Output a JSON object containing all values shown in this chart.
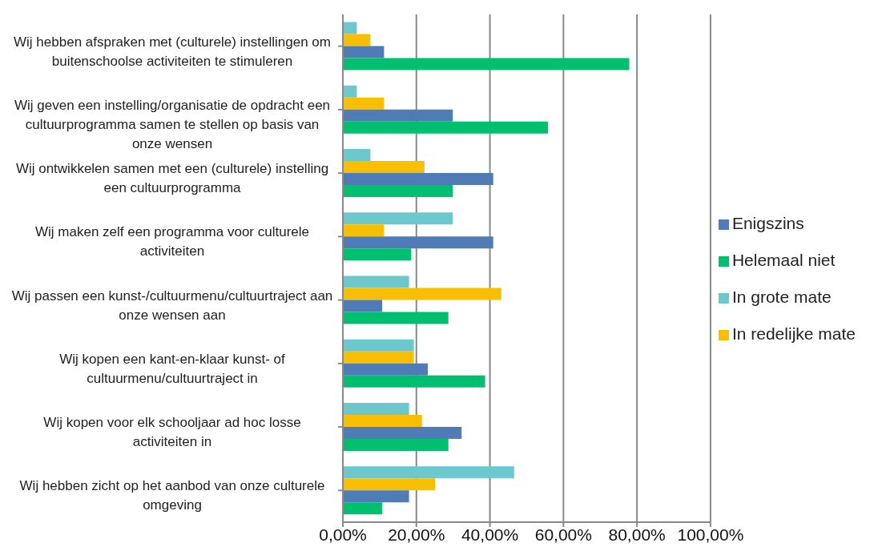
{
  "chart_data": {
    "type": "bar",
    "orientation": "horizontal",
    "categories": [
      "Wij hebben afspraken met (culturele) instellingen om buitenschoolse activiteiten te stimuleren",
      "Wij geven een instelling/organisatie de opdracht een cultuurprogramma samen te stellen op basis van onze wensen",
      "Wij ontwikkelen samen met een (culturele) instelling een cultuurprogramma",
      "Wij maken zelf een programma voor culturele activiteiten",
      "Wij passen een kunst-/cultuurmenu/cultuurtraject aan onze wensen aan",
      "Wij kopen een kant-en-klaar kunst- of cultuurmenu/cultuurtraject in",
      "Wij kopen voor elk schooljaar ad hoc losse activiteiten in",
      "Wij hebben zicht op het aanbod van onze culturele omgeving"
    ],
    "series": [
      {
        "name": "In grote mate",
        "color": "#6cc8cc",
        "values": [
          3.8,
          3.8,
          7.5,
          29.9,
          18.0,
          19.3,
          18.0,
          46.6
        ]
      },
      {
        "name": "In redelijke mate",
        "color": "#f8bf00",
        "values": [
          7.5,
          11.2,
          22.2,
          11.2,
          43.1,
          19.3,
          21.5,
          25.1
        ]
      },
      {
        "name": "Enigszins",
        "color": "#4f7bb6",
        "values": [
          11.2,
          29.9,
          40.9,
          40.9,
          10.7,
          23.1,
          32.3,
          18.0
        ]
      },
      {
        "name": "Helemaal niet",
        "color": "#00bf6f",
        "values": [
          77.9,
          55.8,
          29.9,
          18.6,
          28.7,
          38.7,
          28.7,
          10.7
        ]
      }
    ],
    "xlim": [
      0,
      100
    ],
    "xticks": [
      {
        "value": 0,
        "label": "0,00%"
      },
      {
        "value": 20,
        "label": "20,00%"
      },
      {
        "value": 40,
        "label": "40,00%"
      },
      {
        "value": 60,
        "label": "60,00%"
      },
      {
        "value": 80,
        "label": "80,00%"
      },
      {
        "value": 100,
        "label": "100,00%"
      }
    ],
    "grid": "x",
    "legend": "right"
  }
}
